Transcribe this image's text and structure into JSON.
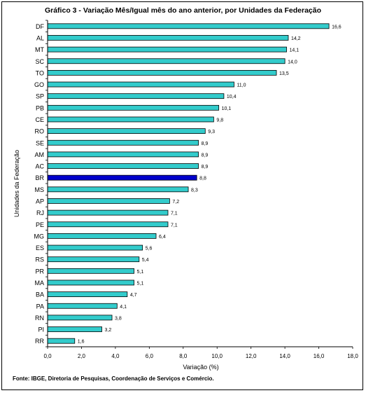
{
  "chart_data": {
    "type": "bar",
    "orientation": "horizontal",
    "title": "Gráfico 3 - Variação Mês/Igual mês do ano anterior, por  Unidades da Federação",
    "xlabel": "Variação (%)",
    "ylabel": "Unidades da Federação",
    "xlim": [
      0,
      18
    ],
    "xticks": [
      "0,0",
      "2,0",
      "4,0",
      "6,0",
      "8,0",
      "10,0",
      "12,0",
      "14,0",
      "16,0",
      "18,0"
    ],
    "categories": [
      "DF",
      "AL",
      "MT",
      "SC",
      "TO",
      "GO",
      "SP",
      "PB",
      "CE",
      "RO",
      "SE",
      "AM",
      "AC",
      "BR",
      "MS",
      "AP",
      "RJ",
      "PE",
      "MG",
      "ES",
      "RS",
      "PR",
      "MA",
      "BA",
      "PA",
      "RN",
      "PI",
      "RR"
    ],
    "values": [
      16.6,
      14.2,
      14.1,
      14.0,
      13.5,
      11.0,
      10.4,
      10.1,
      9.8,
      9.3,
      8.9,
      8.9,
      8.9,
      8.8,
      8.3,
      7.2,
      7.1,
      7.1,
      6.4,
      5.6,
      5.4,
      5.1,
      5.1,
      4.7,
      4.1,
      3.8,
      3.2,
      1.6
    ],
    "value_labels": [
      "16,6",
      "14,2",
      "14,1",
      "14,0",
      "13,5",
      "11,0",
      "10,4",
      "10,1",
      "9,8",
      "9,3",
      "8,9",
      "8,9",
      "8,9",
      "8,8",
      "8,3",
      "7,2",
      "7,1",
      "7,1",
      "6,4",
      "5,6",
      "5,4",
      "5,1",
      "5,1",
      "4,7",
      "4,1",
      "3,8",
      "3,2",
      "1,6"
    ],
    "highlight_category": "BR",
    "grid": false,
    "colors": {
      "bar": "#33cccc",
      "highlight": "#0000cc",
      "bar_border": "#000000"
    }
  },
  "source": "Fonte: IBGE, Diretoria de Pesquisas, Coordenação de Serviços e Comércio."
}
